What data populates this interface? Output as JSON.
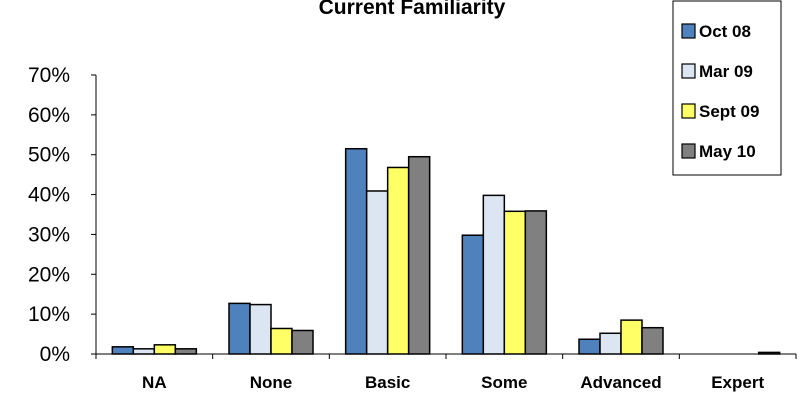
{
  "chart_data": {
    "type": "bar",
    "title": "Current Familiarity",
    "xlabel": "",
    "ylabel": "",
    "categories": [
      "NA",
      "None",
      "Basic",
      "Some",
      "Advanced",
      "Expert"
    ],
    "series": [
      {
        "name": "Oct 08",
        "color": "#4F81BD",
        "values": [
          0.018,
          0.127,
          0.515,
          0.298,
          0.037,
          0.0
        ]
      },
      {
        "name": "Mar 09",
        "color": "#DCE6F2",
        "values": [
          0.013,
          0.124,
          0.409,
          0.398,
          0.052,
          0.0
        ]
      },
      {
        "name": "Sept 09",
        "color": "#FFFF66",
        "values": [
          0.023,
          0.064,
          0.468,
          0.358,
          0.085,
          0.0
        ]
      },
      {
        "name": "May 10",
        "color": "#808080",
        "values": [
          0.013,
          0.059,
          0.495,
          0.359,
          0.066,
          0.004
        ]
      }
    ],
    "ylim": [
      0,
      0.7
    ],
    "yticks": [
      0,
      0.1,
      0.2,
      0.3,
      0.4,
      0.5,
      0.6,
      0.7
    ],
    "ytick_labels": [
      "0%",
      "10%",
      "20%",
      "30%",
      "40%",
      "50%",
      "60%",
      "70%"
    ],
    "grid": false,
    "legend_position": "top-right"
  }
}
